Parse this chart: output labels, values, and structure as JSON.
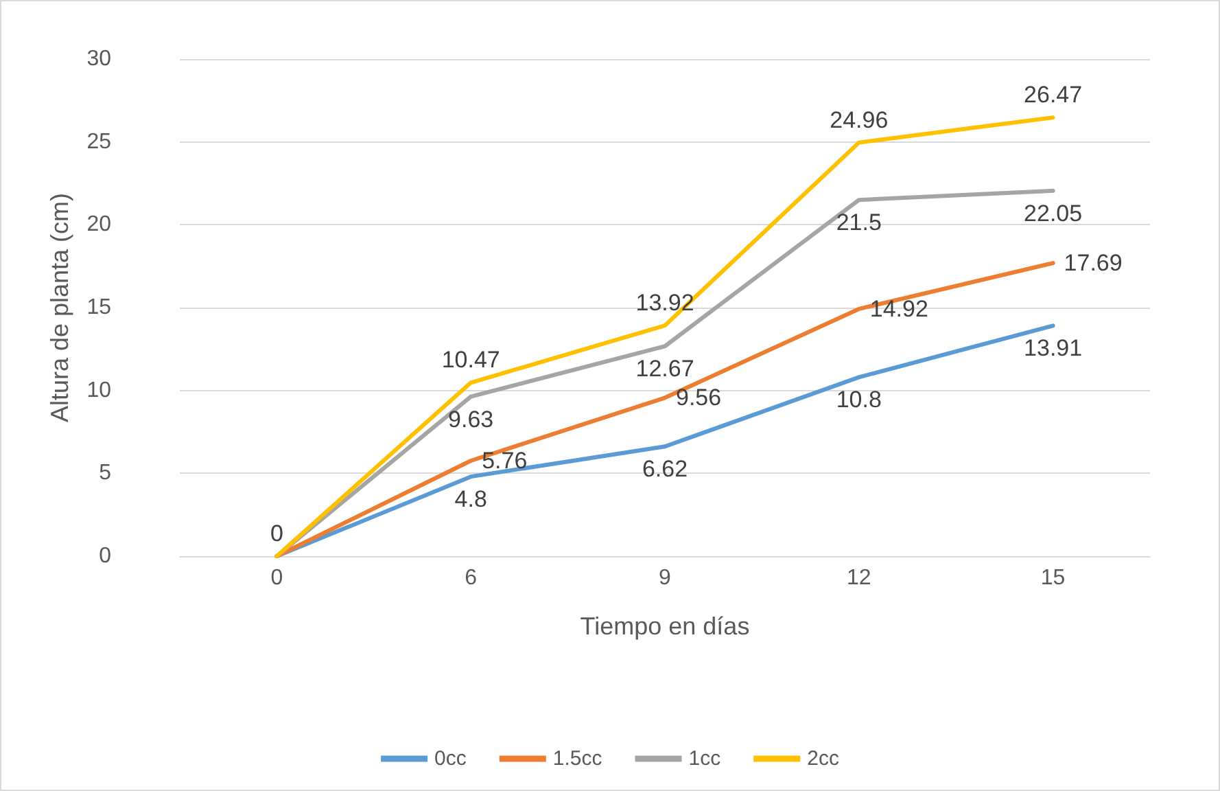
{
  "chart_data": {
    "type": "line",
    "xlabel": "Tiempo en días",
    "ylabel": "Altura de planta (cm)",
    "categories": [
      "0",
      "6",
      "9",
      "12",
      "15"
    ],
    "series": [
      {
        "name": "0cc",
        "color": "#5b9bd5",
        "values": [
          0,
          4.8,
          6.62,
          10.8,
          13.91
        ],
        "value_labels": [
          null,
          "4.8",
          "6.62",
          "10.8",
          "13.91"
        ]
      },
      {
        "name": "1.5cc",
        "color": "#ed7d31",
        "values": [
          0,
          5.76,
          9.56,
          14.92,
          17.69
        ],
        "value_labels": [
          null,
          "5.76",
          "9.56",
          "14.92",
          "17.69"
        ]
      },
      {
        "name": "1cc",
        "color": "#a5a5a5",
        "values": [
          0,
          9.63,
          12.67,
          21.5,
          22.05
        ],
        "value_labels": [
          null,
          "9.63",
          "12.67",
          "21.5",
          "22.05"
        ]
      },
      {
        "name": "2cc",
        "color": "#ffc000",
        "values": [
          0,
          10.47,
          13.92,
          24.96,
          26.47
        ],
        "value_labels": [
          "0",
          "10.47",
          "13.92",
          "24.96",
          "26.47"
        ]
      }
    ],
    "data_labels": false,
    "ylim": [
      0,
      30
    ],
    "yticks": [
      0,
      5,
      10,
      15,
      20,
      25,
      30
    ],
    "grid": "y",
    "legend": "bottom",
    "marker": "none",
    "line_style": "solid"
  }
}
